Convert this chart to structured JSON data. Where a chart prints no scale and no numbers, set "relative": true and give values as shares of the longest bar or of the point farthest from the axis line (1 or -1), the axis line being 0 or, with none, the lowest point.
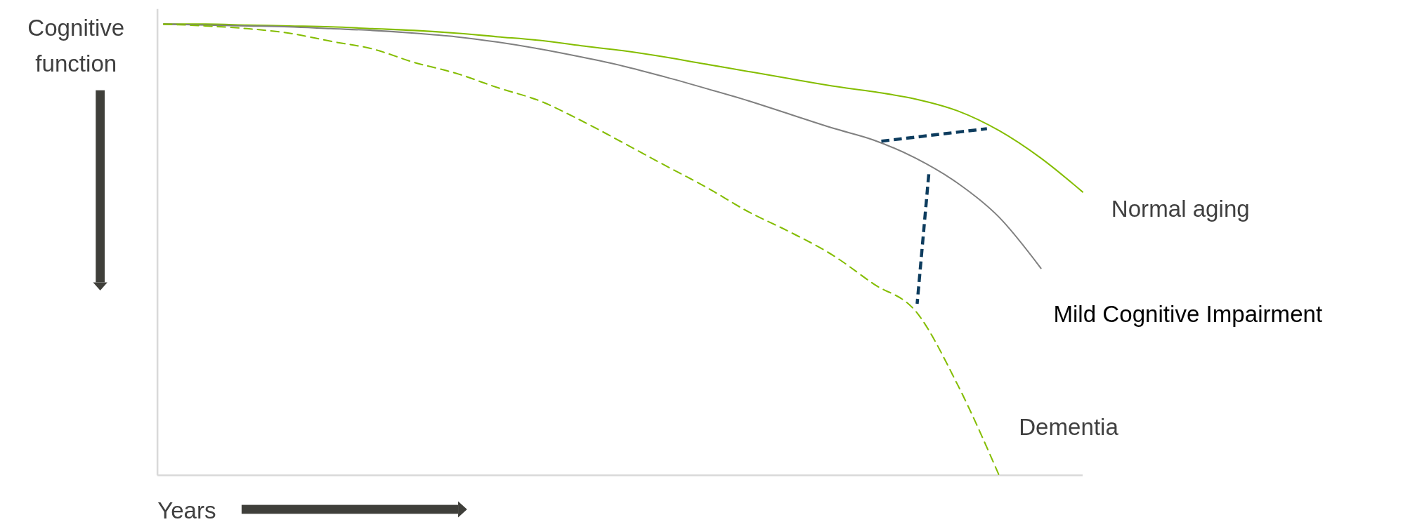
{
  "chart_data": {
    "type": "line",
    "relative": true,
    "xlabel": "Years",
    "ylabel": "Cognitive function",
    "legend": false,
    "marker": "none",
    "categories": [
      null,
      null,
      null,
      null,
      null,
      null,
      null,
      null,
      null,
      null,
      null,
      null,
      null,
      null,
      null,
      null,
      null,
      null,
      null,
      null,
      null,
      null,
      null
    ],
    "series": [
      {
        "name": "Normal aging",
        "color": "#84bd00",
        "line_style": "solid",
        "values": [
          1,
          1,
          0.998,
          0.996,
          0.994,
          0.99,
          0.986,
          0.98,
          0.972,
          0.964,
          0.952,
          0.941,
          0.927,
          0.911,
          0.895,
          0.879,
          0.863,
          0.85,
          0.834,
          0.808,
          0.764,
          0.703,
          0.628
        ]
      },
      {
        "name": "Mild Cognitive Impairment",
        "color": "#808080",
        "line_style": "solid",
        "values": [
          1,
          0.998,
          0.996,
          0.994,
          0.99,
          0.986,
          0.98,
          0.972,
          0.96,
          0.945,
          0.927,
          0.907,
          0.883,
          0.857,
          0.83,
          0.8,
          0.77,
          0.743,
          0.703,
          0.648,
          0.572,
          0.459,
          null
        ]
      },
      {
        "name": "Dementia",
        "color": "#84bd00",
        "line_style": "dashed",
        "values": [
          1,
          0.996,
          0.99,
          0.98,
          0.962,
          0.945,
          0.915,
          0.891,
          0.859,
          0.83,
          0.786,
          0.737,
          0.687,
          0.638,
          0.584,
          0.539,
          0.489,
          0.424,
          0.364,
          0.202,
          0,
          null,
          null
        ]
      }
    ]
  }
}
